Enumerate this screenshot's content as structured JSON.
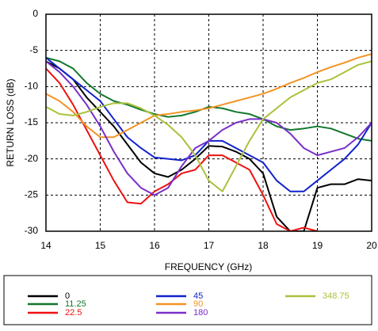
{
  "chart_data": {
    "type": "line",
    "xlabel": "FREQUENCY (GHz)",
    "ylabel": "RETURN LOSS (dB)",
    "x": [
      14,
      14.25,
      14.5,
      14.75,
      15,
      15.25,
      15.5,
      15.75,
      16,
      16.25,
      16.5,
      16.75,
      17,
      17.25,
      17.5,
      17.75,
      18,
      18.25,
      18.5,
      18.75,
      19,
      19.25,
      19.5,
      19.75,
      20
    ],
    "xlim": [
      14,
      20
    ],
    "xticks": [
      14,
      15,
      16,
      17,
      18,
      19,
      20
    ],
    "ylim": [
      -30,
      0
    ],
    "yticks": [
      -30,
      -25,
      -20,
      -15,
      -10,
      -5,
      0
    ],
    "grid": true,
    "series": [
      {
        "name": "0",
        "color": "#000000",
        "values": [
          -6.5,
          -7.5,
          -9,
          -11.5,
          -13.5,
          -15.5,
          -18,
          -20.5,
          -22,
          -22.5,
          -21.5,
          -20,
          -18.2,
          -18.3,
          -19,
          -20,
          -22,
          -28,
          -30,
          -30,
          -24,
          -23.5,
          -23.5,
          -22.8,
          -23
        ]
      },
      {
        "name": "11.25",
        "color": "#11772b",
        "values": [
          -6,
          -6.5,
          -7.5,
          -9.5,
          -11,
          -12,
          -12.5,
          -13.2,
          -13.8,
          -14.2,
          -14,
          -13.5,
          -12.8,
          -13,
          -13.5,
          -13.8,
          -14.5,
          -15.5,
          -16,
          -15.8,
          -15.5,
          -15.8,
          -16.5,
          -17.2,
          -17.5
        ]
      },
      {
        "name": "22.5",
        "color": "#ee1111",
        "values": [
          -7.5,
          -9.5,
          -12.5,
          -16,
          -19.5,
          -23,
          -26,
          -26.2,
          -24.5,
          -23.5,
          -22,
          -21.5,
          -19.5,
          -19.5,
          -20.5,
          -21.5,
          -25,
          -29,
          -30,
          -29.5,
          -30,
          null,
          null,
          null,
          null
        ]
      },
      {
        "name": "45",
        "color": "#1122cc",
        "values": [
          -6,
          -7.5,
          -9,
          -10.5,
          -12,
          -14.5,
          -17,
          -18.5,
          -19.8,
          -20,
          -20.2,
          -19.5,
          -17.5,
          -17.5,
          -18.5,
          -19.5,
          -20.5,
          -23,
          -24.5,
          -24.5,
          -23,
          -21.5,
          -20,
          -18,
          -15
        ]
      },
      {
        "name": "90",
        "color": "#f39324",
        "values": [
          -11,
          -12,
          -13.5,
          -15.5,
          -17,
          -17,
          -16,
          -15,
          -14,
          -13.8,
          -13.5,
          -13.3,
          -13,
          -12.5,
          -12,
          -11.5,
          -11,
          -10.3,
          -9.5,
          -8.8,
          -8,
          -7.3,
          -6.7,
          -6,
          -5.5
        ]
      },
      {
        "name": "180",
        "color": "#7a2ec9",
        "values": [
          -6.5,
          -8,
          -10,
          -12.5,
          -15.5,
          -19,
          -22,
          -24,
          -25,
          -24,
          -21,
          -18.5,
          -17.5,
          -16,
          -15,
          -14.5,
          -14.5,
          -15,
          -16.5,
          -18.5,
          -19.5,
          -19,
          -18.5,
          -17,
          -15
        ]
      },
      {
        "name": "348.75",
        "color": "#a9c23c",
        "values": [
          -12.8,
          -13.8,
          -14,
          -13.5,
          -12.8,
          -12.3,
          -12.3,
          -13,
          -14,
          -15.3,
          -17,
          -19.5,
          -23,
          -24.5,
          -21,
          -17.5,
          -14.5,
          -13,
          -11.5,
          -10.5,
          -9.5,
          -9,
          -8,
          -7,
          -6.5
        ]
      }
    ]
  }
}
